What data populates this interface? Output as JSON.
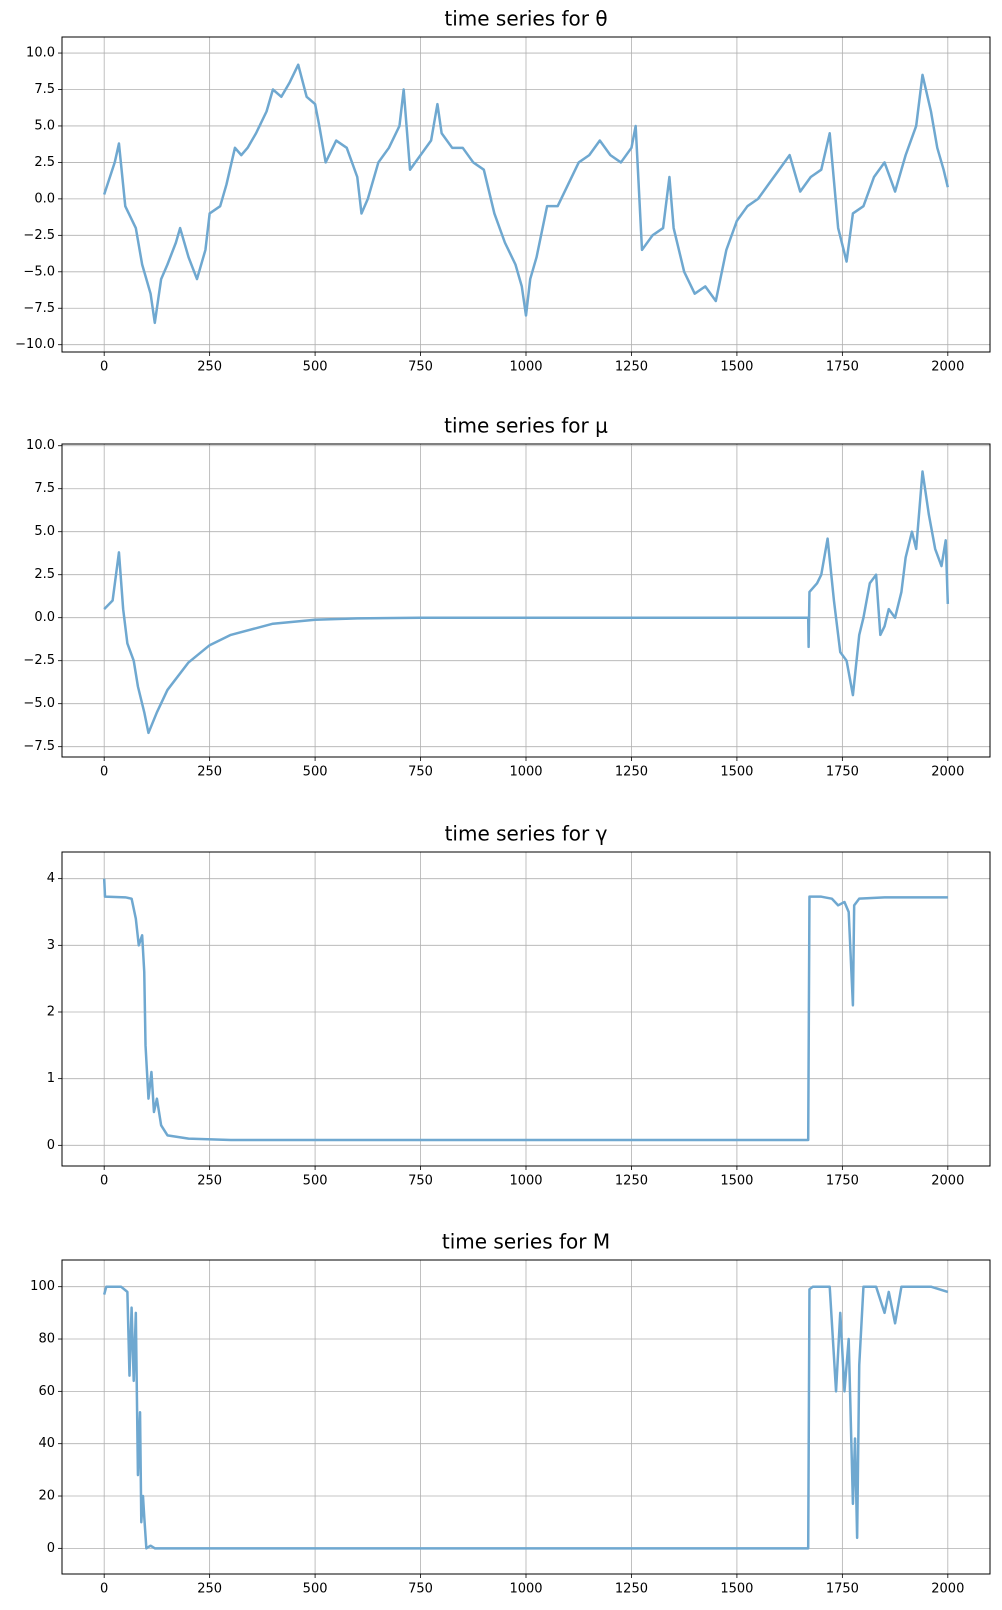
{
  "chart_data": [
    {
      "type": "line",
      "title": "time series for θ",
      "color": "#6fa8d0",
      "grid": true,
      "xlim": [
        -100,
        2100
      ],
      "xticks": [
        0,
        250,
        500,
        750,
        1000,
        1250,
        1500,
        1750,
        2000
      ],
      "ylim": [
        -10.5,
        11.1
      ],
      "yticks": [
        {
          "value": -10,
          "label": "−10.0"
        },
        {
          "value": -7.5,
          "label": "−7.5"
        },
        {
          "value": -5,
          "label": "−5.0"
        },
        {
          "value": -2.5,
          "label": "−2.5"
        },
        {
          "value": 0,
          "label": "0.0"
        },
        {
          "value": 2.5,
          "label": "2.5"
        },
        {
          "value": 5,
          "label": "5.0"
        },
        {
          "value": 7.5,
          "label": "7.5"
        },
        {
          "value": 10,
          "label": "10.0"
        }
      ],
      "x": [
        0,
        25,
        35,
        50,
        75,
        90,
        110,
        120,
        135,
        150,
        170,
        180,
        200,
        220,
        240,
        250,
        275,
        290,
        310,
        325,
        340,
        360,
        385,
        400,
        420,
        440,
        460,
        480,
        500,
        510,
        525,
        550,
        575,
        600,
        610,
        625,
        650,
        675,
        700,
        710,
        725,
        750,
        775,
        790,
        800,
        825,
        850,
        875,
        900,
        925,
        950,
        975,
        990,
        1000,
        1010,
        1025,
        1050,
        1075,
        1100,
        1125,
        1150,
        1175,
        1200,
        1225,
        1250,
        1260,
        1275,
        1300,
        1325,
        1340,
        1350,
        1375,
        1400,
        1425,
        1450,
        1475,
        1500,
        1525,
        1550,
        1575,
        1600,
        1625,
        1650,
        1675,
        1700,
        1720,
        1740,
        1760,
        1775,
        1800,
        1825,
        1850,
        1875,
        1900,
        1925,
        1940,
        1960,
        1975,
        1990,
        2000
      ],
      "values": [
        0.3,
        2.5,
        3.8,
        -0.5,
        -2,
        -4.5,
        -6.5,
        -8.5,
        -5.5,
        -4.5,
        -3,
        -2,
        -4,
        -5.5,
        -3.5,
        -1,
        -0.5,
        1,
        3.5,
        3,
        3.5,
        4.5,
        6,
        7.5,
        7,
        8,
        9.2,
        7,
        6.5,
        5,
        2.5,
        4,
        3.5,
        1.5,
        -1,
        0,
        2.5,
        3.5,
        5,
        7.5,
        2,
        3,
        4,
        6.5,
        4.5,
        3.5,
        3.5,
        2.5,
        2,
        -1,
        -3,
        -4.5,
        -6,
        -8,
        -5.5,
        -4,
        -0.5,
        -0.5,
        1,
        2.5,
        3,
        4,
        3,
        2.5,
        3.5,
        5,
        -3.5,
        -2.5,
        -2,
        1.5,
        -2,
        -5,
        -6.5,
        -6,
        -7,
        -3.5,
        -1.5,
        -0.5,
        0,
        1,
        2,
        3,
        0.5,
        1.5,
        2,
        4.5,
        -2,
        -4.3,
        -1,
        -0.5,
        1.5,
        2.5,
        0.5,
        3,
        5,
        8.5,
        6,
        3.5,
        2,
        0.8
      ]
    },
    {
      "type": "line",
      "title": "time series for μ",
      "color": "#6fa8d0",
      "grid": true,
      "xlim": [
        -100,
        2100
      ],
      "xticks": [
        0,
        250,
        500,
        750,
        1000,
        1250,
        1500,
        1750,
        2000
      ],
      "ylim": [
        -8.1,
        10.1
      ],
      "yticks": [
        {
          "value": -7.5,
          "label": "−7.5"
        },
        {
          "value": -5,
          "label": "−5.0"
        },
        {
          "value": -2.5,
          "label": "−2.5"
        },
        {
          "value": 0,
          "label": "0.0"
        },
        {
          "value": 2.5,
          "label": "2.5"
        },
        {
          "value": 5,
          "label": "5.0"
        },
        {
          "value": 7.5,
          "label": "7.5"
        },
        {
          "value": 10,
          "label": "10.0"
        }
      ],
      "x": [
        0,
        20,
        35,
        45,
        55,
        70,
        80,
        95,
        105,
        125,
        150,
        200,
        250,
        300,
        400,
        500,
        600,
        750,
        1000,
        1669,
        1670,
        1672,
        1690,
        1700,
        1715,
        1730,
        1745,
        1760,
        1775,
        1790,
        1800,
        1815,
        1830,
        1840,
        1850,
        1860,
        1875,
        1890,
        1900,
        1915,
        1925,
        1940,
        1955,
        1970,
        1985,
        1995,
        2000
      ],
      "values": [
        0.5,
        1,
        3.8,
        0.5,
        -1.5,
        -2.5,
        -4,
        -5.5,
        -6.7,
        -5.5,
        -4.2,
        -2.6,
        -1.6,
        -1,
        -0.35,
        -0.12,
        -0.04,
        0,
        0,
        0,
        -1.7,
        1.5,
        2,
        2.5,
        4.6,
        1,
        -2,
        -2.5,
        -4.5,
        -1,
        0,
        2,
        2.5,
        -1,
        -0.5,
        0.5,
        0,
        1.5,
        3.5,
        5,
        4,
        8.5,
        6,
        4,
        3,
        4.5,
        0.8
      ]
    },
    {
      "type": "line",
      "title": "time series for γ",
      "color": "#6fa8d0",
      "grid": true,
      "xlim": [
        -100,
        2100
      ],
      "xticks": [
        0,
        250,
        500,
        750,
        1000,
        1250,
        1500,
        1750,
        2000
      ],
      "ylim": [
        -0.31,
        4.4
      ],
      "yticks": [
        0,
        1,
        2,
        3,
        4
      ],
      "x": [
        0,
        2,
        50,
        65,
        75,
        82,
        90,
        95,
        98,
        105,
        112,
        118,
        125,
        135,
        150,
        200,
        300,
        1000,
        1669,
        1672,
        1700,
        1725,
        1740,
        1755,
        1765,
        1775,
        1778,
        1790,
        1850,
        2000
      ],
      "values": [
        4.0,
        3.73,
        3.72,
        3.7,
        3.4,
        3.0,
        3.15,
        2.6,
        1.5,
        0.7,
        1.1,
        0.5,
        0.7,
        0.3,
        0.15,
        0.1,
        0.08,
        0.08,
        0.08,
        3.73,
        3.73,
        3.7,
        3.6,
        3.65,
        3.5,
        2.1,
        3.6,
        3.7,
        3.72,
        3.72
      ]
    },
    {
      "type": "line",
      "title": "time series for M",
      "color": "#6fa8d0",
      "grid": true,
      "xlim": [
        -100,
        2100
      ],
      "xticks": [
        0,
        250,
        500,
        750,
        1000,
        1250,
        1500,
        1750,
        2000
      ],
      "ylim": [
        -9.8,
        110.2
      ],
      "yticks": [
        0,
        20,
        40,
        60,
        80,
        100
      ],
      "x": [
        0,
        5,
        40,
        55,
        60,
        65,
        70,
        75,
        80,
        85,
        88,
        92,
        95,
        100,
        110,
        120,
        1669,
        1672,
        1680,
        1720,
        1735,
        1745,
        1755,
        1765,
        1775,
        1780,
        1785,
        1790,
        1800,
        1830,
        1850,
        1860,
        1875,
        1890,
        1960,
        2000
      ],
      "values": [
        97,
        100,
        100,
        98,
        66,
        92,
        64,
        90,
        28,
        52,
        10,
        20,
        12,
        0,
        1,
        0,
        0,
        99,
        100,
        100,
        60,
        90,
        60,
        80,
        17,
        42,
        4,
        70,
        100,
        100,
        90,
        98,
        86,
        100,
        100,
        98
      ]
    }
  ]
}
